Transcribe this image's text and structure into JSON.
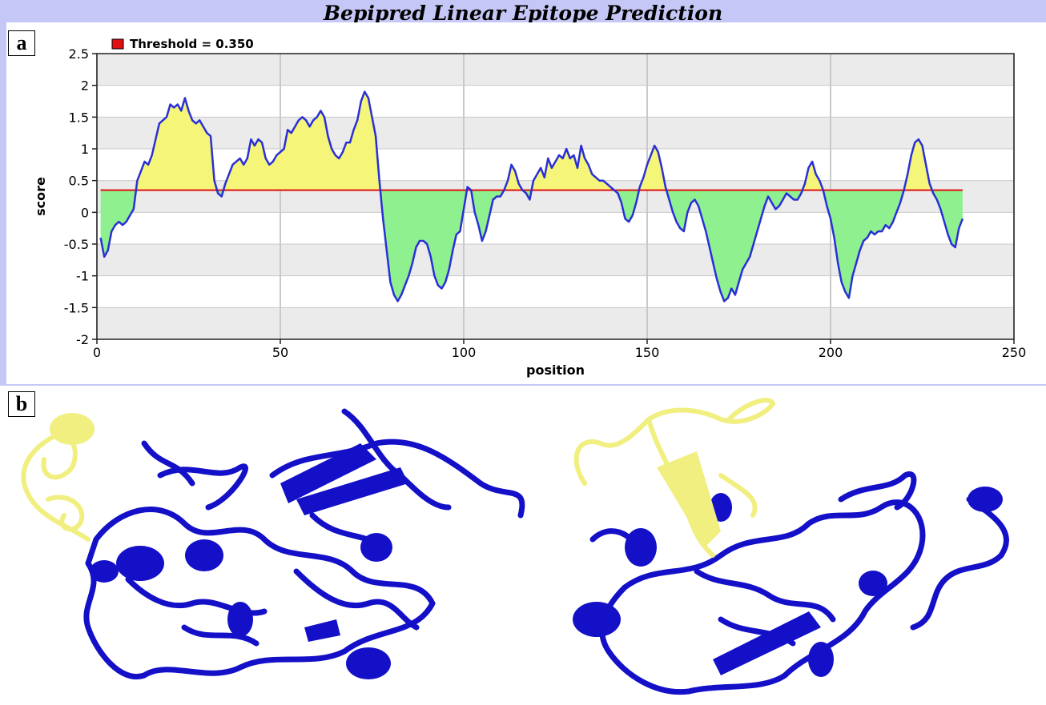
{
  "title": "Bepipred Linear Epitope Prediction",
  "panels": {
    "a": "a",
    "b": "b"
  },
  "colors": {
    "above": "#f5f57a",
    "below": "#8ef08e",
    "line": "#2a2fd6",
    "threshold": "#e01010",
    "band": "#c5c8f7",
    "helix_blue": "#1410c8",
    "epitope_yellow": "#f0ef80"
  },
  "chart_data": {
    "type": "area",
    "xlabel": "position",
    "ylabel": "score",
    "xlim": [
      0,
      250
    ],
    "ylim": [
      -2,
      2.5
    ],
    "xticks": [
      "0",
      "50",
      "100",
      "150",
      "200",
      "250"
    ],
    "yticks": [
      "2.5",
      "2",
      "1.5",
      "1",
      "0.5",
      "0",
      "-0.5",
      "-1",
      "-1.5",
      "-2"
    ],
    "grid": true,
    "legend": {
      "label": "Threshold = 0.350",
      "position": "top-left"
    },
    "threshold": 0.35,
    "series": [
      {
        "points": [
          [
            1,
            -0.4
          ],
          [
            2,
            -0.7
          ],
          [
            3,
            -0.6
          ],
          [
            4,
            -0.3
          ],
          [
            5,
            -0.2
          ],
          [
            6,
            -0.15
          ],
          [
            7,
            -0.2
          ],
          [
            8,
            -0.15
          ],
          [
            9,
            -0.05
          ],
          [
            10,
            0.05
          ],
          [
            11,
            0.5
          ],
          [
            12,
            0.65
          ],
          [
            13,
            0.8
          ],
          [
            14,
            0.75
          ],
          [
            15,
            0.9
          ],
          [
            16,
            1.15
          ],
          [
            17,
            1.4
          ],
          [
            18,
            1.45
          ],
          [
            19,
            1.5
          ],
          [
            20,
            1.7
          ],
          [
            21,
            1.65
          ],
          [
            22,
            1.7
          ],
          [
            23,
            1.6
          ],
          [
            24,
            1.8
          ],
          [
            25,
            1.6
          ],
          [
            26,
            1.45
          ],
          [
            27,
            1.4
          ],
          [
            28,
            1.45
          ],
          [
            29,
            1.35
          ],
          [
            30,
            1.25
          ],
          [
            31,
            1.2
          ],
          [
            32,
            0.5
          ],
          [
            33,
            0.3
          ],
          [
            34,
            0.25
          ],
          [
            35,
            0.45
          ],
          [
            36,
            0.6
          ],
          [
            37,
            0.75
          ],
          [
            38,
            0.8
          ],
          [
            39,
            0.85
          ],
          [
            40,
            0.75
          ],
          [
            41,
            0.85
          ],
          [
            42,
            1.15
          ],
          [
            43,
            1.05
          ],
          [
            44,
            1.15
          ],
          [
            45,
            1.1
          ],
          [
            46,
            0.85
          ],
          [
            47,
            0.75
          ],
          [
            48,
            0.8
          ],
          [
            49,
            0.9
          ],
          [
            50,
            0.95
          ],
          [
            51,
            1.0
          ],
          [
            52,
            1.3
          ],
          [
            53,
            1.25
          ],
          [
            54,
            1.35
          ],
          [
            55,
            1.45
          ],
          [
            56,
            1.5
          ],
          [
            57,
            1.45
          ],
          [
            58,
            1.35
          ],
          [
            59,
            1.45
          ],
          [
            60,
            1.5
          ],
          [
            61,
            1.6
          ],
          [
            62,
            1.5
          ],
          [
            63,
            1.2
          ],
          [
            64,
            1.0
          ],
          [
            65,
            0.9
          ],
          [
            66,
            0.85
          ],
          [
            67,
            0.95
          ],
          [
            68,
            1.1
          ],
          [
            69,
            1.1
          ],
          [
            70,
            1.3
          ],
          [
            71,
            1.45
          ],
          [
            72,
            1.75
          ],
          [
            73,
            1.9
          ],
          [
            74,
            1.8
          ],
          [
            75,
            1.5
          ],
          [
            76,
            1.2
          ],
          [
            77,
            0.5
          ],
          [
            78,
            -0.1
          ],
          [
            79,
            -0.6
          ],
          [
            80,
            -1.1
          ],
          [
            81,
            -1.3
          ],
          [
            82,
            -1.4
          ],
          [
            83,
            -1.3
          ],
          [
            84,
            -1.15
          ],
          [
            85,
            -1.0
          ],
          [
            86,
            -0.8
          ],
          [
            87,
            -0.55
          ],
          [
            88,
            -0.45
          ],
          [
            89,
            -0.45
          ],
          [
            90,
            -0.5
          ],
          [
            91,
            -0.7
          ],
          [
            92,
            -1.0
          ],
          [
            93,
            -1.15
          ],
          [
            94,
            -1.2
          ],
          [
            95,
            -1.1
          ],
          [
            96,
            -0.9
          ],
          [
            97,
            -0.6
          ],
          [
            98,
            -0.35
          ],
          [
            99,
            -0.3
          ],
          [
            100,
            0.05
          ],
          [
            101,
            0.4
          ],
          [
            102,
            0.35
          ],
          [
            103,
            0.0
          ],
          [
            104,
            -0.2
          ],
          [
            105,
            -0.45
          ],
          [
            106,
            -0.3
          ],
          [
            107,
            -0.05
          ],
          [
            108,
            0.2
          ],
          [
            109,
            0.25
          ],
          [
            110,
            0.25
          ],
          [
            111,
            0.35
          ],
          [
            112,
            0.5
          ],
          [
            113,
            0.75
          ],
          [
            114,
            0.65
          ],
          [
            115,
            0.45
          ],
          [
            116,
            0.35
          ],
          [
            117,
            0.3
          ],
          [
            118,
            0.2
          ],
          [
            119,
            0.5
          ],
          [
            120,
            0.6
          ],
          [
            121,
            0.7
          ],
          [
            122,
            0.55
          ],
          [
            123,
            0.85
          ],
          [
            124,
            0.7
          ],
          [
            125,
            0.8
          ],
          [
            126,
            0.9
          ],
          [
            127,
            0.85
          ],
          [
            128,
            1.0
          ],
          [
            129,
            0.85
          ],
          [
            130,
            0.9
          ],
          [
            131,
            0.7
          ],
          [
            132,
            1.05
          ],
          [
            133,
            0.85
          ],
          [
            134,
            0.75
          ],
          [
            135,
            0.6
          ],
          [
            136,
            0.55
          ],
          [
            137,
            0.5
          ],
          [
            138,
            0.5
          ],
          [
            139,
            0.45
          ],
          [
            140,
            0.4
          ],
          [
            141,
            0.35
          ],
          [
            142,
            0.3
          ],
          [
            143,
            0.15
          ],
          [
            144,
            -0.1
          ],
          [
            145,
            -0.15
          ],
          [
            146,
            -0.05
          ],
          [
            147,
            0.15
          ],
          [
            148,
            0.4
          ],
          [
            149,
            0.55
          ],
          [
            150,
            0.75
          ],
          [
            151,
            0.9
          ],
          [
            152,
            1.05
          ],
          [
            153,
            0.95
          ],
          [
            154,
            0.7
          ],
          [
            155,
            0.4
          ],
          [
            156,
            0.2
          ],
          [
            157,
            0.0
          ],
          [
            158,
            -0.15
          ],
          [
            159,
            -0.25
          ],
          [
            160,
            -0.3
          ],
          [
            161,
            0.0
          ],
          [
            162,
            0.15
          ],
          [
            163,
            0.2
          ],
          [
            164,
            0.1
          ],
          [
            165,
            -0.1
          ],
          [
            166,
            -0.3
          ],
          [
            167,
            -0.55
          ],
          [
            168,
            -0.8
          ],
          [
            169,
            -1.05
          ],
          [
            170,
            -1.25
          ],
          [
            171,
            -1.4
          ],
          [
            172,
            -1.35
          ],
          [
            173,
            -1.2
          ],
          [
            174,
            -1.3
          ],
          [
            175,
            -1.1
          ],
          [
            176,
            -0.9
          ],
          [
            177,
            -0.8
          ],
          [
            178,
            -0.7
          ],
          [
            179,
            -0.5
          ],
          [
            180,
            -0.3
          ],
          [
            181,
            -0.1
          ],
          [
            182,
            0.1
          ],
          [
            183,
            0.25
          ],
          [
            184,
            0.15
          ],
          [
            185,
            0.05
          ],
          [
            186,
            0.1
          ],
          [
            187,
            0.2
          ],
          [
            188,
            0.3
          ],
          [
            189,
            0.25
          ],
          [
            190,
            0.2
          ],
          [
            191,
            0.2
          ],
          [
            192,
            0.3
          ],
          [
            193,
            0.45
          ],
          [
            194,
            0.7
          ],
          [
            195,
            0.8
          ],
          [
            196,
            0.6
          ],
          [
            197,
            0.5
          ],
          [
            198,
            0.35
          ],
          [
            199,
            0.1
          ],
          [
            200,
            -0.1
          ],
          [
            201,
            -0.4
          ],
          [
            202,
            -0.8
          ],
          [
            203,
            -1.1
          ],
          [
            204,
            -1.25
          ],
          [
            205,
            -1.35
          ],
          [
            206,
            -1.0
          ],
          [
            207,
            -0.8
          ],
          [
            208,
            -0.6
          ],
          [
            209,
            -0.45
          ],
          [
            210,
            -0.4
          ],
          [
            211,
            -0.3
          ],
          [
            212,
            -0.35
          ],
          [
            213,
            -0.3
          ],
          [
            214,
            -0.3
          ],
          [
            215,
            -0.2
          ],
          [
            216,
            -0.25
          ],
          [
            217,
            -0.15
          ],
          [
            218,
            0.0
          ],
          [
            219,
            0.15
          ],
          [
            220,
            0.35
          ],
          [
            221,
            0.6
          ],
          [
            222,
            0.9
          ],
          [
            223,
            1.1
          ],
          [
            224,
            1.15
          ],
          [
            225,
            1.05
          ],
          [
            226,
            0.75
          ],
          [
            227,
            0.45
          ],
          [
            228,
            0.3
          ],
          [
            229,
            0.2
          ],
          [
            230,
            0.05
          ],
          [
            231,
            -0.15
          ],
          [
            232,
            -0.35
          ],
          [
            233,
            -0.5
          ],
          [
            234,
            -0.55
          ],
          [
            235,
            -0.25
          ],
          [
            236,
            -0.1
          ]
        ]
      }
    ]
  }
}
